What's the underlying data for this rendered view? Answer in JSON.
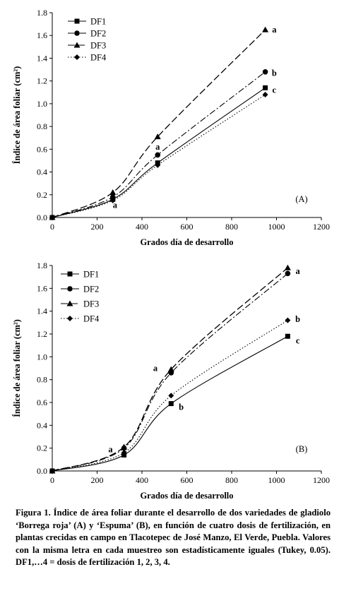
{
  "chart_data": [
    {
      "type": "line",
      "panel_label": "(A)",
      "xlabel": "Grados día de desarrollo",
      "ylabel": "Índice de área foliar (cm²)",
      "xlim": [
        0,
        1200
      ],
      "ylim": [
        0,
        1.8
      ],
      "xticks": [
        "0",
        "200",
        "400",
        "600",
        "800",
        "1000",
        "1200"
      ],
      "yticks": [
        "0.0",
        "0.2",
        "0.4",
        "0.6",
        "0.8",
        "1.0",
        "1.2",
        "1.4",
        "1.6",
        "1.8"
      ],
      "legend_position": "top-left",
      "series": [
        {
          "name": "DF1",
          "marker": "square",
          "dash": "solid",
          "x": [
            0,
            270,
            470,
            950
          ],
          "y": [
            0.0,
            0.16,
            0.48,
            1.14
          ]
        },
        {
          "name": "DF2",
          "marker": "circle",
          "dash": "dashdot",
          "x": [
            0,
            270,
            470,
            950
          ],
          "y": [
            0.0,
            0.18,
            0.55,
            1.28
          ]
        },
        {
          "name": "DF3",
          "marker": "triangle",
          "dash": "longdash",
          "x": [
            0,
            270,
            470,
            950
          ],
          "y": [
            0.0,
            0.22,
            0.71,
            1.65
          ]
        },
        {
          "name": "DF4",
          "marker": "diamond",
          "dash": "dotted",
          "x": [
            0,
            270,
            470,
            950
          ],
          "y": [
            0.0,
            0.15,
            0.46,
            1.08
          ]
        }
      ],
      "annotations": [
        {
          "text": "a",
          "x": 990,
          "y": 1.65
        },
        {
          "text": "b",
          "x": 990,
          "y": 1.27
        },
        {
          "text": "c",
          "x": 990,
          "y": 1.12
        },
        {
          "text": "a",
          "x": 470,
          "y": 0.62
        },
        {
          "text": "a",
          "x": 280,
          "y": 0.11
        }
      ]
    },
    {
      "type": "line",
      "panel_label": "(B)",
      "xlabel": "Grados día de desarrollo",
      "ylabel": "Índice de área foliar (cm²)",
      "xlim": [
        0,
        1200
      ],
      "ylim": [
        0,
        1.8
      ],
      "xticks": [
        "0",
        "200",
        "400",
        "600",
        "800",
        "1000",
        "1200"
      ],
      "yticks": [
        "0.0",
        "0.2",
        "0.4",
        "0.6",
        "0.8",
        "1.0",
        "1.2",
        "1.4",
        "1.6",
        "1.8"
      ],
      "legend_position": "top-left",
      "series": [
        {
          "name": "DF1",
          "marker": "square",
          "dash": "solid",
          "x": [
            0,
            320,
            530,
            1050
          ],
          "y": [
            0.0,
            0.14,
            0.59,
            1.18
          ]
        },
        {
          "name": "DF2",
          "marker": "circle",
          "dash": "dashdot",
          "x": [
            0,
            320,
            530,
            1050
          ],
          "y": [
            0.0,
            0.2,
            0.86,
            1.73
          ]
        },
        {
          "name": "DF3",
          "marker": "triangle",
          "dash": "longdash",
          "x": [
            0,
            320,
            530,
            1050
          ],
          "y": [
            0.0,
            0.21,
            0.89,
            1.78
          ]
        },
        {
          "name": "DF4",
          "marker": "diamond",
          "dash": "dotted",
          "x": [
            0,
            320,
            530,
            1050
          ],
          "y": [
            0.0,
            0.16,
            0.66,
            1.32
          ]
        }
      ],
      "annotations": [
        {
          "text": "a",
          "x": 1095,
          "y": 1.75
        },
        {
          "text": "b",
          "x": 1095,
          "y": 1.33
        },
        {
          "text": "c",
          "x": 1095,
          "y": 1.14
        },
        {
          "text": "a",
          "x": 460,
          "y": 0.9
        },
        {
          "text": "b",
          "x": 575,
          "y": 0.56
        },
        {
          "text": "a",
          "x": 260,
          "y": 0.19
        }
      ]
    }
  ],
  "caption": "Figura 1. Índice de área foliar durante el desarrollo de dos variedades de gladiolo ‘Borrega roja’ (A) y ‘Espuma’ (B), en función de cuatro dosis de fertilización, en plantas crecidas en campo en Tlacotepec de José Manzo, El Verde, Puebla. Valores con la misma letra en cada muestreo son estadísticamente iguales (Tukey, 0.05). DF1,…4 = dosis de fertilización 1, 2, 3, 4."
}
